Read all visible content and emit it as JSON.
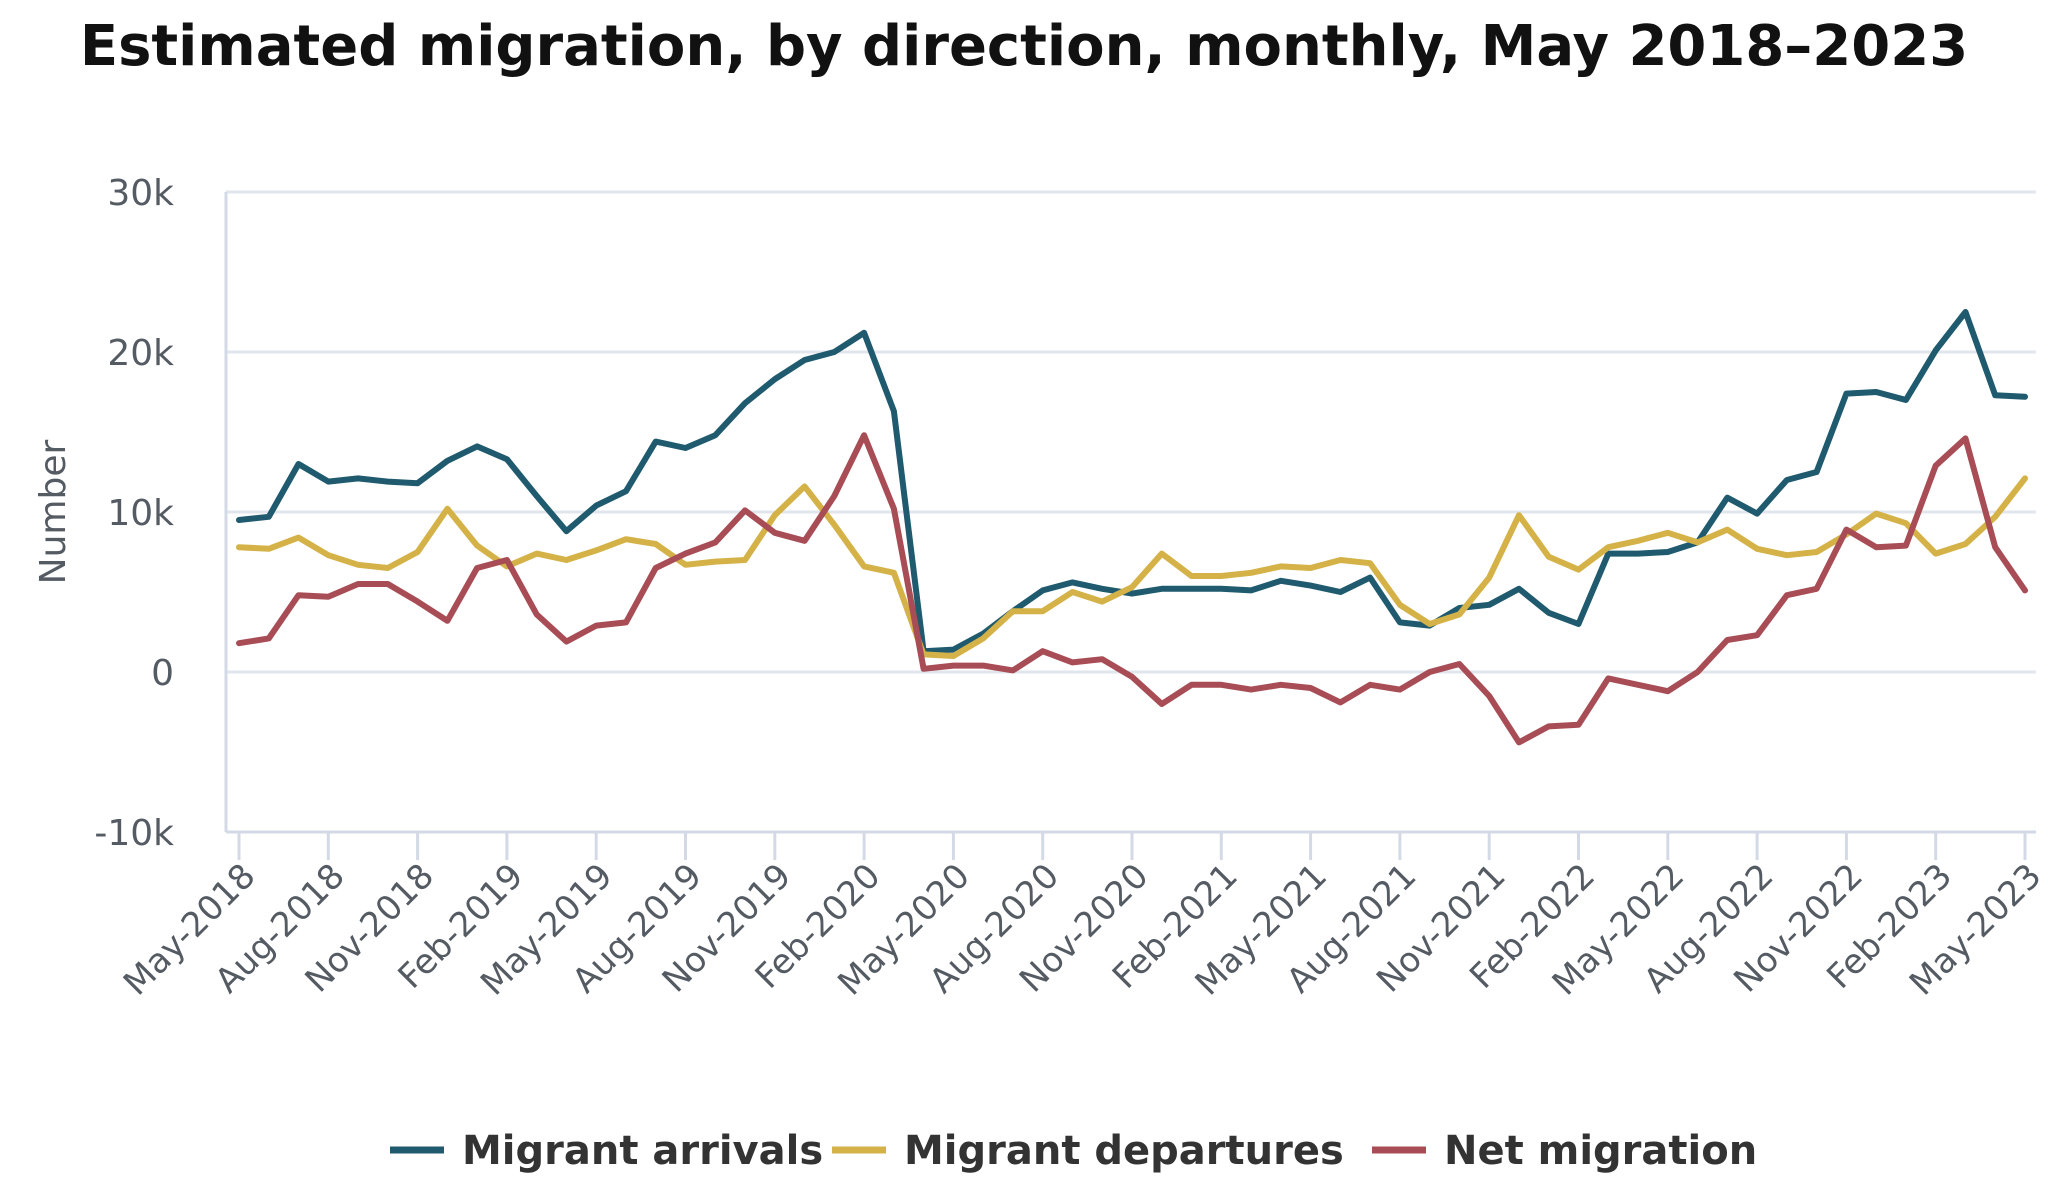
{
  "chart_data": {
    "type": "line",
    "title": "Estimated migration, by direction, monthly, May 2018–2023",
    "xlabel": "",
    "ylabel": "Number",
    "ylim": [
      -10000,
      30000
    ],
    "yticks": [
      30000,
      20000,
      10000,
      0,
      -10000
    ],
    "ytick_labels": [
      "30k",
      "20k",
      "10k",
      "0",
      "-10k"
    ],
    "grid": "horizontal",
    "legend_position": "bottom",
    "x": [
      "May-2018",
      "Jun-2018",
      "Jul-2018",
      "Aug-2018",
      "Sep-2018",
      "Oct-2018",
      "Nov-2018",
      "Dec-2018",
      "Jan-2019",
      "Feb-2019",
      "Mar-2019",
      "Apr-2019",
      "May-2019",
      "Jun-2019",
      "Jul-2019",
      "Aug-2019",
      "Sep-2019",
      "Oct-2019",
      "Nov-2019",
      "Dec-2019",
      "Jan-2020",
      "Feb-2020",
      "Mar-2020",
      "Apr-2020",
      "May-2020",
      "Jun-2020",
      "Jul-2020",
      "Aug-2020",
      "Sep-2020",
      "Oct-2020",
      "Nov-2020",
      "Dec-2020",
      "Jan-2021",
      "Feb-2021",
      "Mar-2021",
      "Apr-2021",
      "May-2021",
      "Jun-2021",
      "Jul-2021",
      "Aug-2021",
      "Sep-2021",
      "Oct-2021",
      "Nov-2021",
      "Dec-2021",
      "Jan-2022",
      "Feb-2022",
      "Mar-2022",
      "Apr-2022",
      "May-2022",
      "Jun-2022",
      "Jul-2022",
      "Aug-2022",
      "Sep-2022",
      "Oct-2022",
      "Nov-2022",
      "Dec-2022",
      "Jan-2023",
      "Feb-2023",
      "Mar-2023",
      "Apr-2023",
      "May-2023"
    ],
    "xtick_labels": [
      "May-2018",
      "Aug-2018",
      "Nov-2018",
      "Feb-2019",
      "May-2019",
      "Aug-2019",
      "Nov-2019",
      "Feb-2020",
      "May-2020",
      "Aug-2020",
      "Nov-2020",
      "Feb-2021",
      "May-2021",
      "Aug-2021",
      "Nov-2021",
      "Feb-2022",
      "May-2022",
      "Aug-2022",
      "Nov-2022",
      "Feb-2023",
      "May-2023"
    ],
    "series": [
      {
        "name": "Migrant arrivals",
        "color": "#1f5a6e",
        "values": [
          9500,
          9700,
          13000,
          11900,
          12100,
          11900,
          11800,
          13200,
          14100,
          13300,
          11000,
          8800,
          10400,
          11300,
          14400,
          14000,
          14800,
          16800,
          18300,
          19500,
          20000,
          21200,
          16300,
          1300,
          1400,
          2400,
          3800,
          5100,
          5600,
          5200,
          4900,
          5200,
          5200,
          5200,
          5100,
          5700,
          5400,
          5000,
          5900,
          3100,
          2900,
          4000,
          4200,
          5200,
          3700,
          3000,
          7400,
          7400,
          7500,
          8100,
          10900,
          9900,
          12000,
          12500,
          17400,
          17500,
          17000,
          20100,
          22500,
          17300,
          17200
        ]
      },
      {
        "name": "Migrant departures",
        "color": "#d4b247",
        "values": [
          7800,
          7700,
          8400,
          7300,
          6700,
          6500,
          7500,
          10200,
          7900,
          6600,
          7400,
          7000,
          7600,
          8300,
          8000,
          6700,
          6900,
          7000,
          9800,
          11600,
          9200,
          6600,
          6200,
          1100,
          1000,
          2100,
          3800,
          3800,
          5000,
          4400,
          5300,
          7400,
          6000,
          6000,
          6200,
          6600,
          6500,
          7000,
          6800,
          4200,
          3000,
          3600,
          5900,
          9800,
          7200,
          6400,
          7800,
          8200,
          8700,
          8100,
          8900,
          7700,
          7300,
          7500,
          8600,
          9900,
          9300,
          7400,
          8000,
          9700,
          12100
        ]
      },
      {
        "name": "Net migration",
        "color": "#a84d55",
        "values": [
          1800,
          2100,
          4800,
          4700,
          5500,
          5500,
          4400,
          3200,
          6500,
          7000,
          3600,
          1900,
          2900,
          3100,
          6500,
          7400,
          8100,
          10100,
          8700,
          8200,
          11000,
          14800,
          10200,
          200,
          400,
          400,
          100,
          1300,
          600,
          800,
          -300,
          -2000,
          -800,
          -800,
          -1100,
          -800,
          -1000,
          -1900,
          -800,
          -1100,
          0,
          500,
          -1500,
          -4400,
          -3400,
          -3300,
          -400,
          -800,
          -1200,
          0,
          2000,
          2300,
          4800,
          5200,
          8900,
          7800,
          7900,
          12900,
          14600,
          7800,
          5100
        ]
      }
    ]
  }
}
